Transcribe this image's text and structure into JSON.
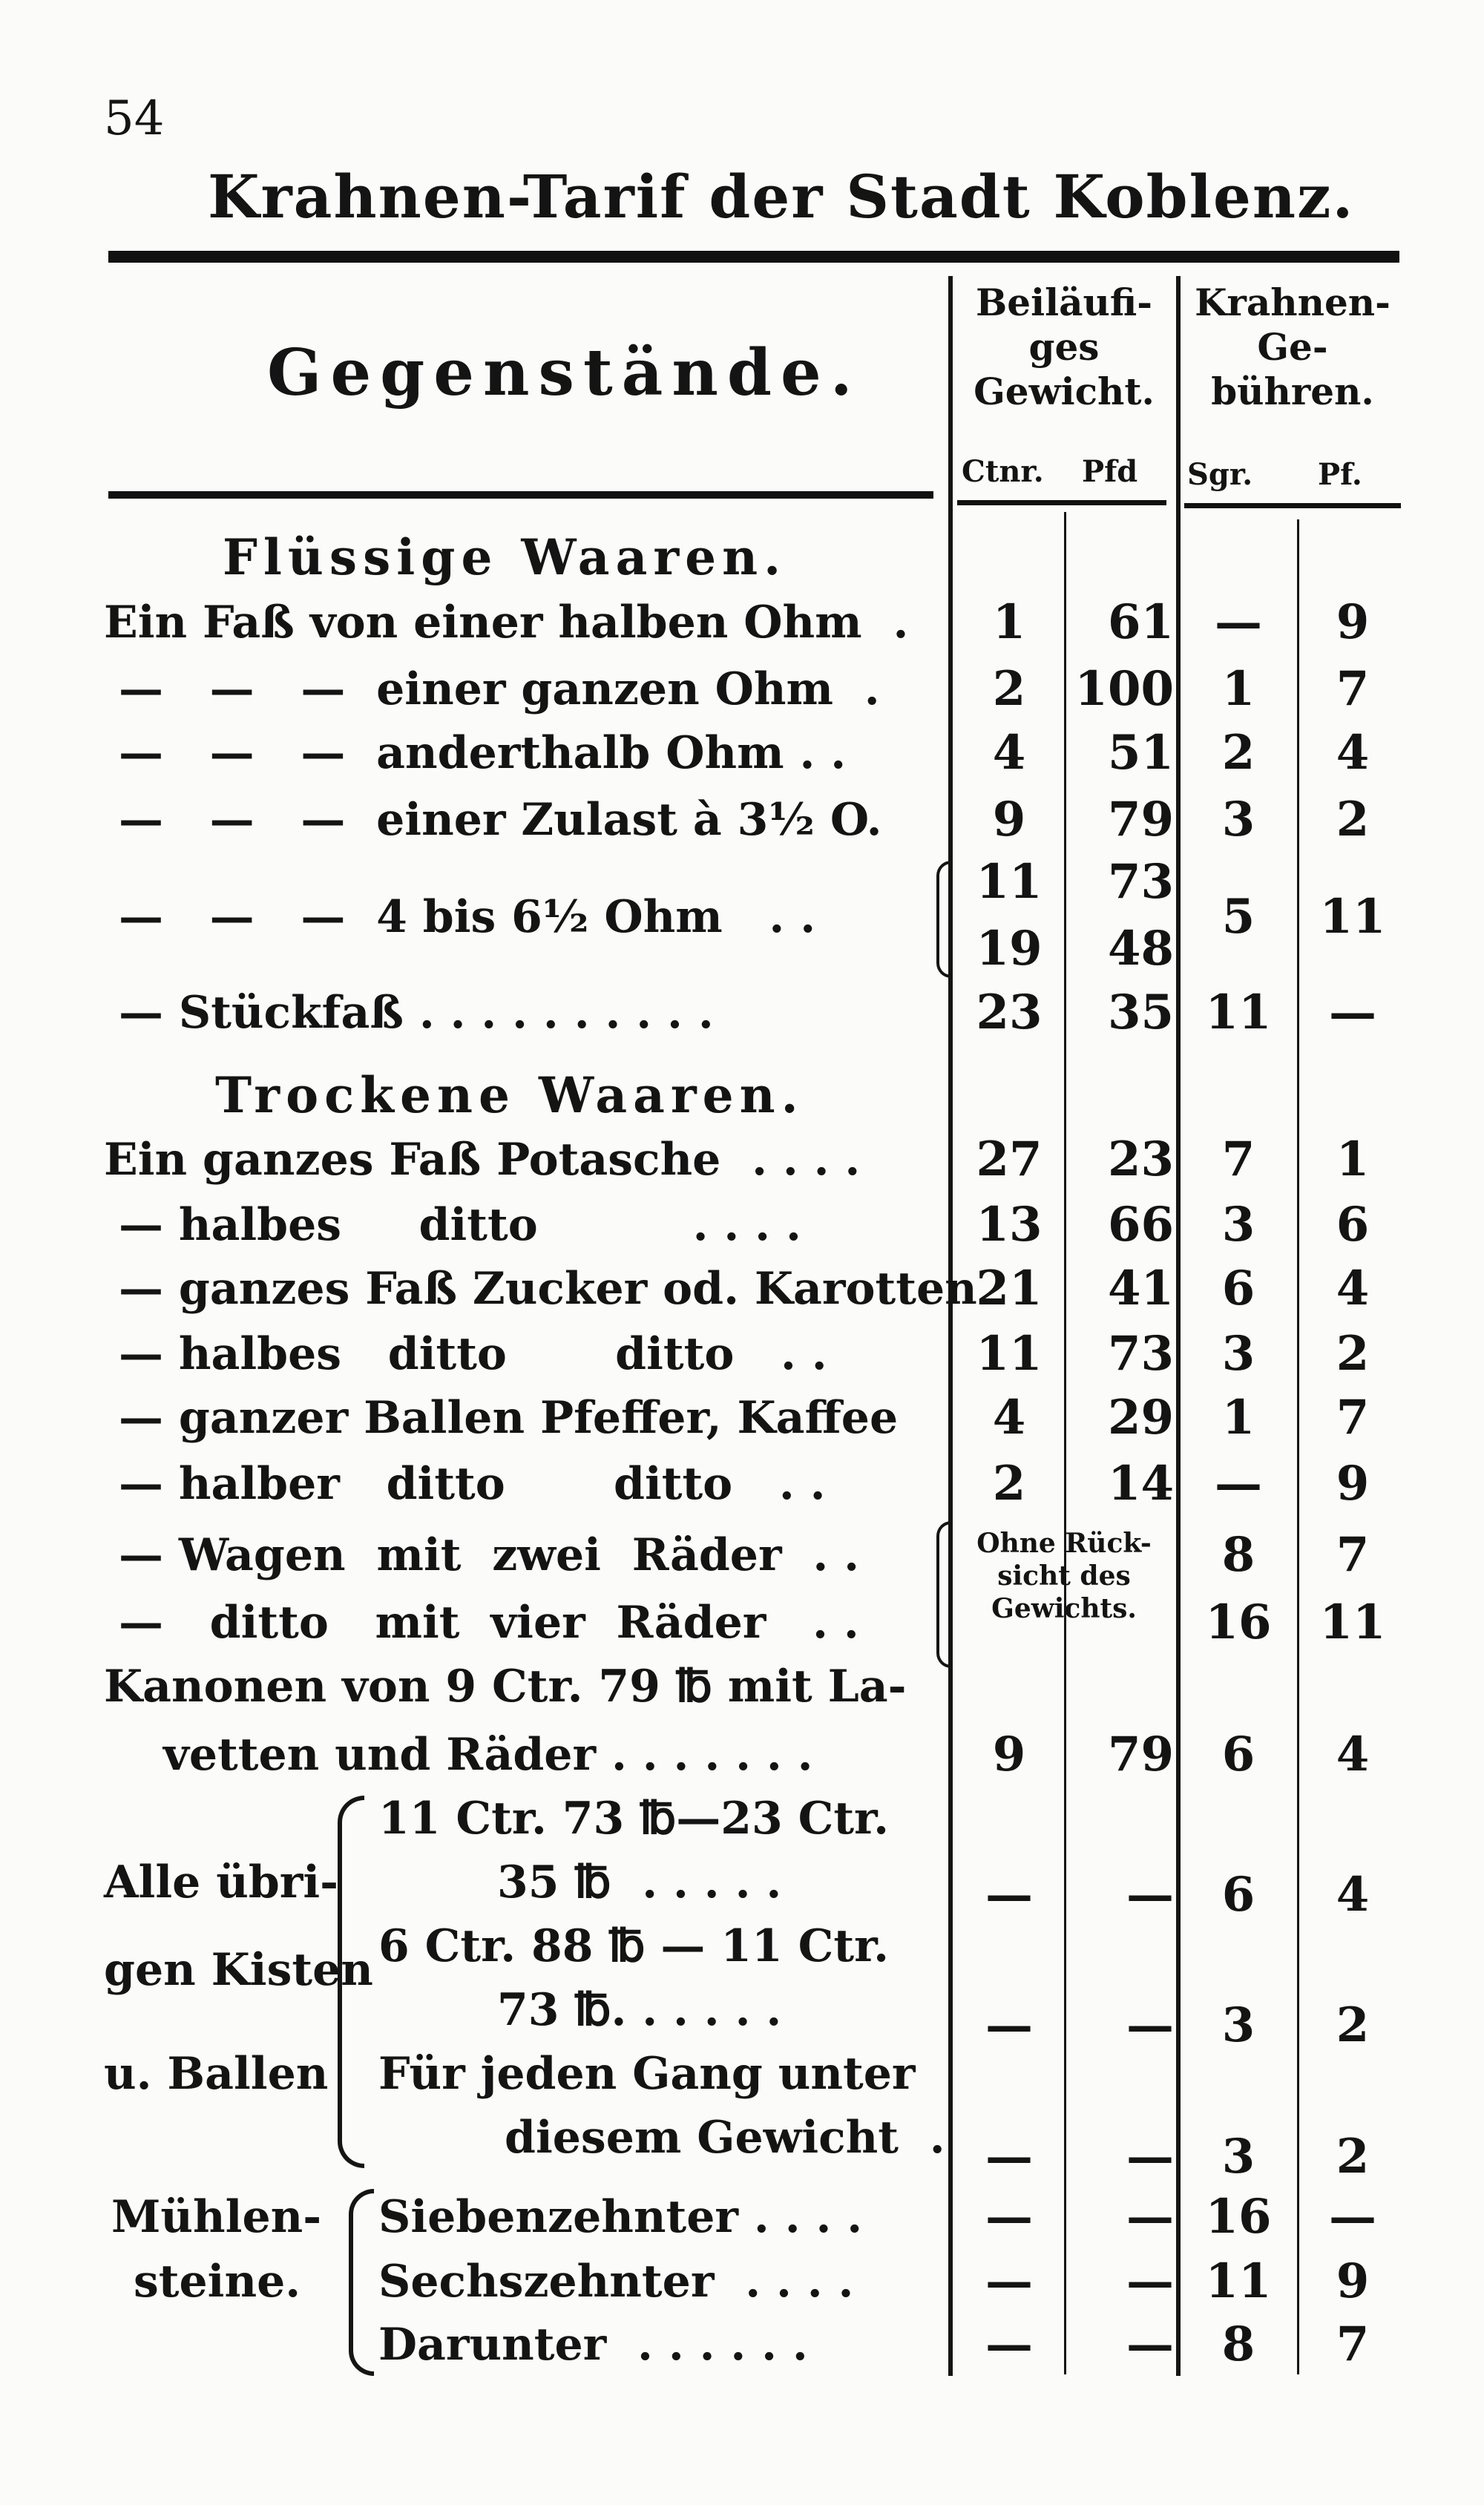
{
  "page_number": "54",
  "title": "Krahnen-Tarif der Stadt Koblenz.",
  "header": {
    "items": "Gegenstände.",
    "weight": "Beiläufi-ges Gewicht.",
    "weight_units": [
      "Ctnr.",
      "Pfd"
    ],
    "fees": "Krahnen-Ge-bühren.",
    "fee_units": [
      "Sgr.",
      "Pf."
    ]
  },
  "sections": {
    "liquid": "Flüssige Waaren.",
    "dry": "Trockene Waaren."
  },
  "rows": [
    {
      "label": "Ein Faß von einer halben Ohm  .",
      "ctr": "1",
      "pfd": "61",
      "sgr": "—",
      "pf": "9"
    },
    {
      "label": "—   —   —  einer ganzen Ohm  .",
      "ctr": "2",
      "pfd": "100",
      "sgr": "1",
      "pf": "7"
    },
    {
      "label": "—   —   —  anderthalb Ohm . .",
      "ctr": "4",
      "pfd": "51",
      "sgr": "2",
      "pf": "4"
    },
    {
      "label": "—   —   —  einer Zulast à 3½ O.",
      "ctr": "9",
      "pfd": "79",
      "sgr": "3",
      "pf": "2"
    },
    {
      "label": "—   —   —  4 bis 6½ Ohm   . .",
      "ctr": "11",
      "ctr2": "19",
      "pfd": "73",
      "pfd2": "48",
      "sgr": "5",
      "pf": "11"
    },
    {
      "label": "— Stückfaß . . . . . . . . . .",
      "ctr": "23",
      "pfd": "35",
      "sgr": "11",
      "pf": "—"
    },
    {
      "label": "Ein ganzes Faß Potasche  . . . .",
      "ctr": "27",
      "pfd": "23",
      "sgr": "7",
      "pf": "1"
    },
    {
      "label": "— halbes     ditto          . . . .",
      "ctr": "13",
      "pfd": "66",
      "sgr": "3",
      "pf": "6"
    },
    {
      "label": "— ganzes Faß Zucker od. Karotten",
      "ctr": "21",
      "pfd": "41",
      "sgr": "6",
      "pf": "4"
    },
    {
      "label": "— halbes   ditto       ditto   . .",
      "ctr": "11",
      "pfd": "73",
      "sgr": "3",
      "pf": "2"
    },
    {
      "label": "— ganzer Ballen Pfeffer, Kaffee",
      "ctr": "4",
      "pfd": "29",
      "sgr": "1",
      "pf": "7"
    },
    {
      "label": "— halber   ditto       ditto   . .",
      "ctr": "2",
      "pfd": "14",
      "sgr": "—",
      "pf": "9"
    },
    {
      "label": "— Wagen  mit  zwei  Räder  . .",
      "sgr": "8",
      "pf": "7"
    },
    {
      "label": "—   ditto   mit  vier  Räder   . .",
      "sgr": "16",
      "pf": "11"
    }
  ],
  "wagon_note": "Ohne Rück-sicht des Gewichts.",
  "cannon": {
    "line1": "Kanonen von 9 Ctr. 79 ℔ mit La-",
    "line2": "vetten und Räder . . . . . . .",
    "ctr": "9",
    "pfd": "79",
    "sgr": "6",
    "pf": "4"
  },
  "boxes": {
    "label": [
      "Alle übri-",
      "gen Kisten",
      "u. Ballen"
    ],
    "items": [
      {
        "line1": "11 Ctr. 73 ℔—23 Ctr.",
        "line2": "35 ℔  . . . . .",
        "ctr": "—",
        "pfd": "—",
        "sgr": "6",
        "pf": "4"
      },
      {
        "line1": "6 Ctr. 88 ℔ — 11 Ctr.",
        "line2": "73 ℔. . . . . .",
        "ctr": "—",
        "pfd": "—",
        "sgr": "3",
        "pf": "2"
      },
      {
        "line1": "Für jeden Gang unter",
        "line2": "diesem Gewicht  .",
        "ctr": "—",
        "pfd": "—",
        "sgr": "3",
        "pf": "2"
      }
    ]
  },
  "millstones": {
    "label": [
      "Mühlen-",
      "steine."
    ],
    "items": [
      {
        "label": "Siebenzehnter . . . .",
        "ctr": "—",
        "pfd": "—",
        "sgr": "16",
        "pf": "—"
      },
      {
        "label": "Sechszehnter  . . . .",
        "ctr": "—",
        "pfd": "—",
        "sgr": "11",
        "pf": "9"
      },
      {
        "label": "Darunter  . . . . . .",
        "ctr": "—",
        "pfd": "—",
        "sgr": "8",
        "pf": "7"
      }
    ]
  }
}
